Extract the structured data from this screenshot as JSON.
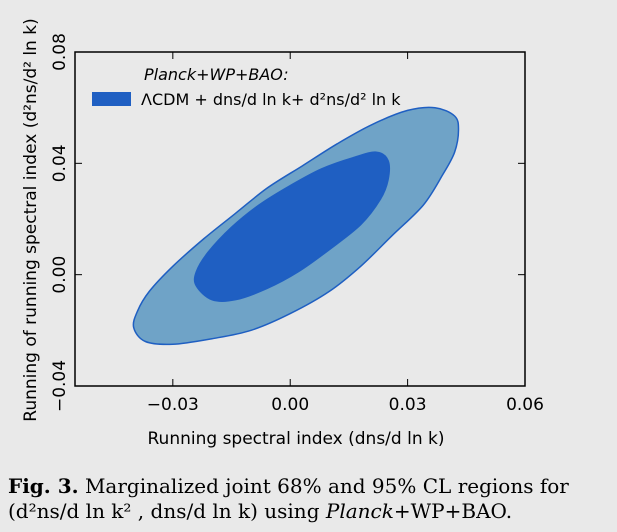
{
  "chart_data": {
    "type": "contour",
    "title": "",
    "xlabel": "Running spectral index (dns/d ln k)",
    "ylabel": "Running of running spectral index (d²ns/d² ln k)",
    "xlim": [
      -0.055,
      0.06
    ],
    "ylim": [
      -0.04,
      0.08
    ],
    "xticks": [
      -0.03,
      0.0,
      0.03,
      0.06
    ],
    "xtick_labels": [
      "−0.03",
      "0.00",
      "0.03",
      "0.06"
    ],
    "yticks": [
      -0.04,
      0.0,
      0.04,
      0.08
    ],
    "ytick_labels": [
      "−0.04",
      "0.00",
      "0.04",
      "0.08"
    ],
    "legend": {
      "title": "Planck+WP+BAO:",
      "entry": "ΛCDM + dns/d ln k+ d²ns/d² ln k",
      "placement": "top-left"
    },
    "series": [
      {
        "name": "95% CL",
        "color": "#6fa3c7",
        "edge_color": "#1f5fc2",
        "contour": [
          [
            -0.04,
            -0.019
          ],
          [
            -0.039,
            -0.013
          ],
          [
            -0.036,
            -0.006
          ],
          [
            -0.03,
            0.003
          ],
          [
            -0.022,
            0.013
          ],
          [
            -0.014,
            0.022
          ],
          [
            -0.006,
            0.031
          ],
          [
            0.003,
            0.039
          ],
          [
            0.012,
            0.047
          ],
          [
            0.021,
            0.054
          ],
          [
            0.03,
            0.059
          ],
          [
            0.037,
            0.06
          ],
          [
            0.042,
            0.057
          ],
          [
            0.043,
            0.052
          ],
          [
            0.042,
            0.044
          ],
          [
            0.039,
            0.036
          ],
          [
            0.034,
            0.025
          ],
          [
            0.026,
            0.014
          ],
          [
            0.018,
            0.003
          ],
          [
            0.01,
            -0.006
          ],
          [
            0.0,
            -0.014
          ],
          [
            -0.01,
            -0.02
          ],
          [
            -0.02,
            -0.023
          ],
          [
            -0.03,
            -0.025
          ],
          [
            -0.037,
            -0.024
          ]
        ]
      },
      {
        "name": "68% CL",
        "color": "#1f5fc2",
        "edge_color": "#1f5fc2",
        "contour": [
          [
            -0.024,
            -0.004
          ],
          [
            -0.024,
            0.001
          ],
          [
            -0.021,
            0.008
          ],
          [
            -0.015,
            0.017
          ],
          [
            -0.008,
            0.025
          ],
          [
            0.0,
            0.032
          ],
          [
            0.008,
            0.038
          ],
          [
            0.016,
            0.042
          ],
          [
            0.022,
            0.044
          ],
          [
            0.025,
            0.041
          ],
          [
            0.025,
            0.034
          ],
          [
            0.023,
            0.027
          ],
          [
            0.018,
            0.018
          ],
          [
            0.01,
            0.009
          ],
          [
            0.002,
            0.001
          ],
          [
            -0.006,
            -0.005
          ],
          [
            -0.014,
            -0.009
          ],
          [
            -0.02,
            -0.009
          ]
        ]
      }
    ]
  },
  "caption": {
    "label": "Fig. 3.",
    "line1": "Marginalized joint 68% and 95% CL regions for",
    "line2_math": "(d²ns/d ln k² , dns/d ln k) using ",
    "line2_italic": "Planck",
    "line2_tail": "+WP+BAO."
  }
}
